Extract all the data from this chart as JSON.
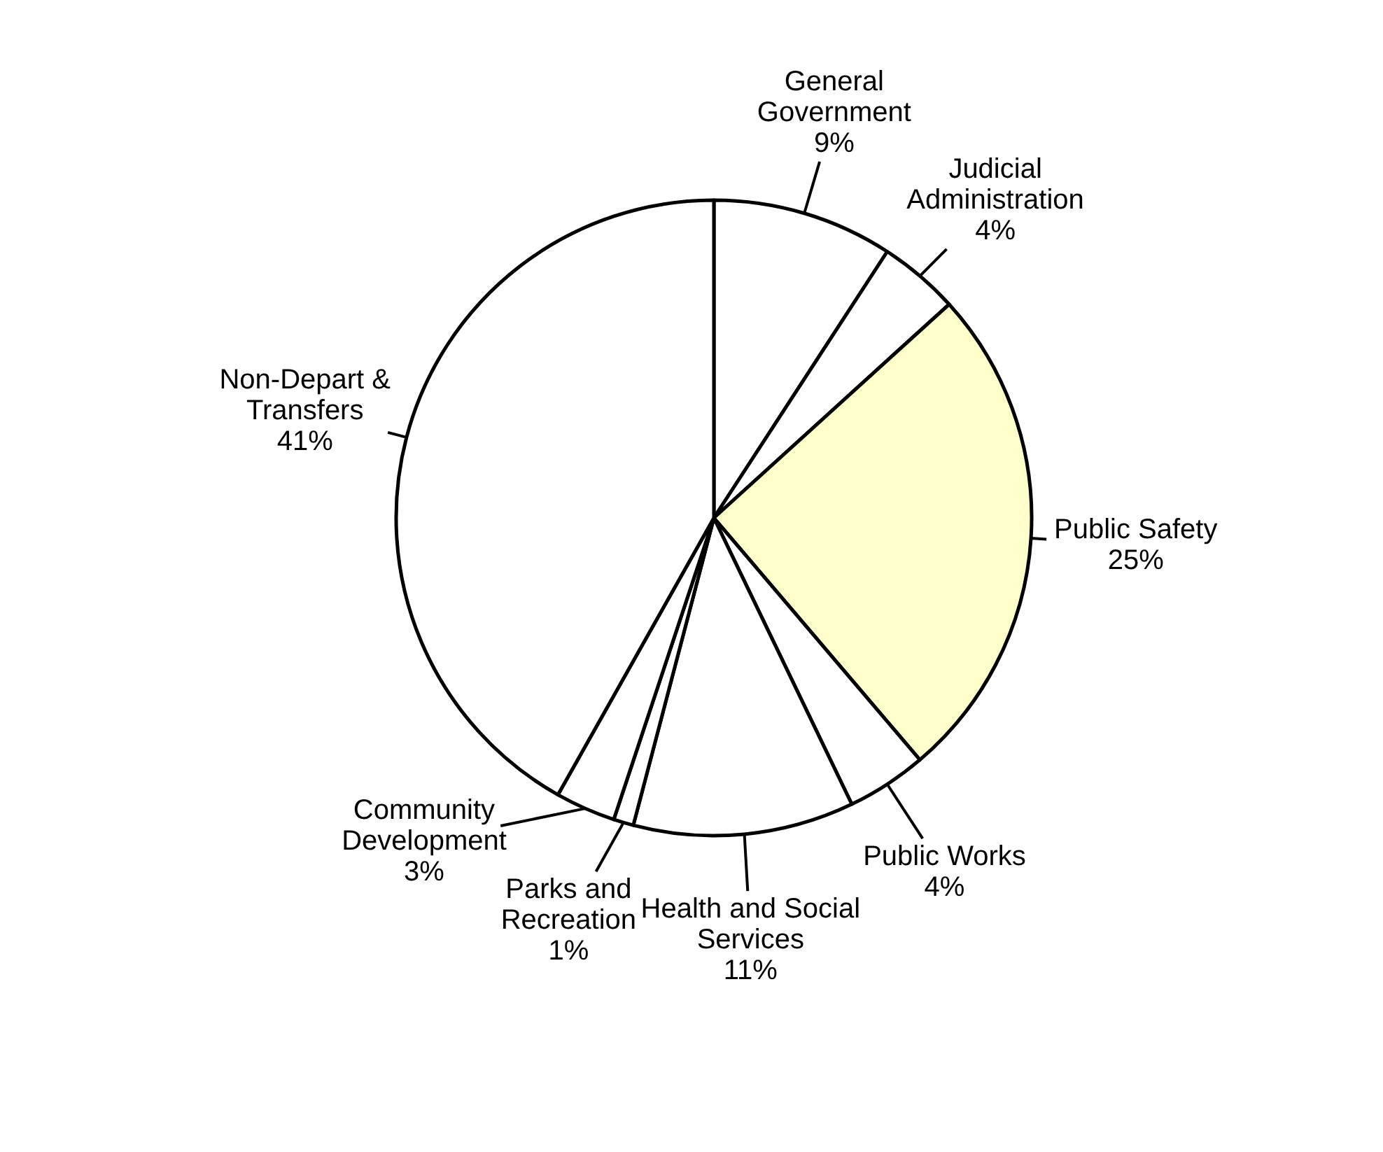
{
  "chart_data": {
    "type": "pie",
    "categories": [
      "General Government",
      "Judicial Administration",
      "Public Safety",
      "Public Works",
      "Health and Social Services",
      "Parks and Recreation",
      "Community Development",
      "Non-Depart & Transfers"
    ],
    "values": [
      9,
      4,
      25,
      4,
      11,
      1,
      3,
      41
    ],
    "value_labels": [
      "9%",
      "4%",
      "25%",
      "4%",
      "11%",
      "1%",
      "3%",
      "41%"
    ],
    "colors": [
      "#ffffff",
      "#ffffff",
      "#ffffcc",
      "#ffffff",
      "#ffffff",
      "#ffffff",
      "#ffffff",
      "#ffffff"
    ]
  }
}
